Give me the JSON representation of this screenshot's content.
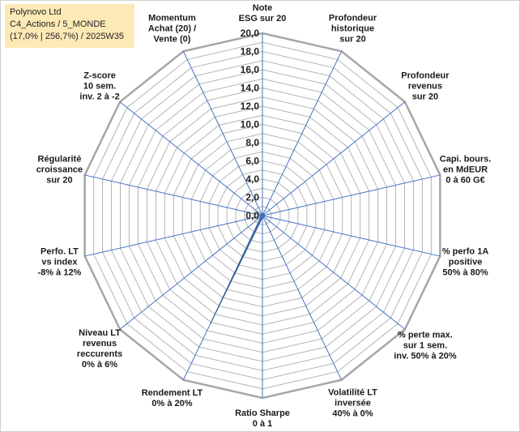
{
  "info_box": {
    "line1": "Polynovo Ltd",
    "line2": "C4_Actions / 5_MONDE",
    "line3": "(17,0% | 256,7%) / 2025W35"
  },
  "colors": {
    "grid": "#b3b3b3",
    "outer_ring": "#a6a6a6",
    "spoke": "#4472c4",
    "series_fill": "#4a7ab8",
    "series_stroke": "#2e5a96",
    "info_bg": "#fde9b6"
  },
  "chart_data": {
    "type": "radar",
    "title": "",
    "rmin": 0,
    "rmax": 20,
    "tick_step": 1,
    "ticks": [
      "0,0",
      "2,0",
      "4,0",
      "6,0",
      "8,0",
      "10,0",
      "12,0",
      "14,0",
      "16,0",
      "18,0",
      "20,0"
    ],
    "legend": "none",
    "axes": [
      [
        "Note",
        "ESG sur 20"
      ],
      [
        "Profondeur",
        "historique",
        "sur 20"
      ],
      [
        "Profondeur",
        "revenus",
        "sur 20"
      ],
      [
        "Capi. bours.",
        "en MdEUR",
        "0 à 60 G€"
      ],
      [
        "% perfo 1A",
        "positive",
        "50% à 80%"
      ],
      [
        "% perte max.",
        "sur 1 sem.",
        "inv. 50% à 20%"
      ],
      [
        "Volatilité LT",
        "inversée",
        "40% à 0%"
      ],
      [
        "Ratio Sharpe",
        "0 à 1"
      ],
      [
        "Rendement LT",
        "0% à 20%"
      ],
      [
        "Niveau LT",
        "revenus",
        "reccurents",
        "0% à 6%"
      ],
      [
        "Perfo. LT",
        "vs index",
        "-8% à 12%"
      ],
      [
        "Régularité",
        "croissance",
        "sur 20"
      ],
      [
        "Z-score",
        "10 sem.",
        "inv. 2 à -2"
      ],
      [
        "Momentum",
        "Achat (20) /",
        "Vente (0)"
      ]
    ],
    "series": [
      {
        "values": [
          0.2,
          0.2,
          0.2,
          0.2,
          0.2,
          0.2,
          0.2,
          0.2,
          13.2,
          0.2,
          0.2,
          0.2,
          0.2,
          0.2
        ]
      }
    ]
  }
}
